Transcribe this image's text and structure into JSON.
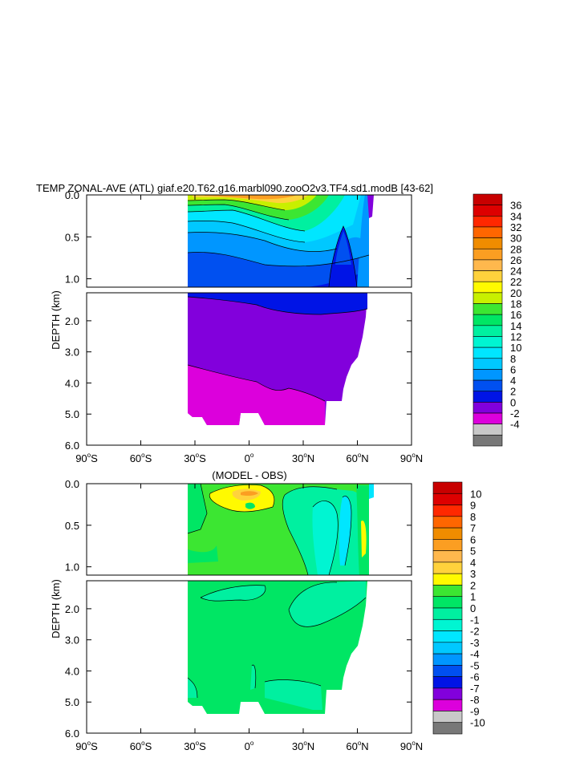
{
  "chart_data": [
    {
      "type": "heatmap",
      "title": "TEMP ZONAL-AVE (ATL) giaf.e20.T62.g16.marbl090.zooO2v3.TF4.sd1.modB [43-62]",
      "ylabel": "DEPTH (km)",
      "xlim": [
        -90,
        90
      ],
      "ylim_upper": [
        0.0,
        1.1
      ],
      "ylim_lower": [
        1.1,
        6.0
      ],
      "x_ticks": [
        {
          "value": -90,
          "deg": "90",
          "hemi": "S"
        },
        {
          "value": -60,
          "deg": "60",
          "hemi": "S"
        },
        {
          "value": -30,
          "deg": "30",
          "hemi": "S"
        },
        {
          "value": 0,
          "deg": "0",
          "hemi": ""
        },
        {
          "value": 30,
          "deg": "30",
          "hemi": "N"
        },
        {
          "value": 60,
          "deg": "60",
          "hemi": "N"
        },
        {
          "value": 90,
          "deg": "90",
          "hemi": "N"
        }
      ],
      "y_ticks_upper": [
        "0.0",
        "0.5",
        "1.0"
      ],
      "y_ticks_lower": [
        "2.0",
        "3.0",
        "4.0",
        "5.0",
        "6.0"
      ],
      "data_extent_lat": [
        -34,
        66
      ],
      "colorbar_labels": [
        "36",
        "34",
        "32",
        "30",
        "28",
        "26",
        "24",
        "22",
        "20",
        "18",
        "16",
        "14",
        "12",
        "10",
        "8",
        "6",
        "4",
        "2",
        "0",
        "-2",
        "-4"
      ],
      "colorbar_colors": [
        "#c80000",
        "#dd0000",
        "#ff2800",
        "#ff6600",
        "#f08c00",
        "#fb9e22",
        "#ffb84d",
        "#ffd23c",
        "#fffa00",
        "#c8f000",
        "#3ce632",
        "#00e664",
        "#00f0a0",
        "#00f5d2",
        "#00e6ff",
        "#00c8ff",
        "#0096ff",
        "#0050f0",
        "#0014e6",
        "#8200dc",
        "#dc00dc",
        "#c8c8c8",
        "#787878"
      ]
    },
    {
      "type": "heatmap",
      "title": "(MODEL - OBS)",
      "ylabel": "DEPTH (km)",
      "xlim": [
        -90,
        90
      ],
      "ylim_upper": [
        0.0,
        1.1
      ],
      "ylim_lower": [
        1.1,
        6.0
      ],
      "data_extent_lat": [
        -34,
        66
      ],
      "colorbar_labels": [
        "10",
        "9",
        "8",
        "7",
        "6",
        "5",
        "4",
        "3",
        "2",
        "1",
        "0",
        "-1",
        "-2",
        "-3",
        "-4",
        "-5",
        "-6",
        "-7",
        "-8",
        "-9",
        "-10"
      ],
      "colorbar_colors": [
        "#c80000",
        "#dd0000",
        "#ff2800",
        "#ff6600",
        "#f08c00",
        "#fb9e22",
        "#ffb84d",
        "#ffd23c",
        "#fffa00",
        "#3ce632",
        "#00e664",
        "#00f0a0",
        "#00f5d2",
        "#00e6ff",
        "#00c8ff",
        "#0096ff",
        "#0050f0",
        "#0014e6",
        "#8200dc",
        "#dc00dc",
        "#c8c8c8",
        "#787878"
      ]
    }
  ]
}
